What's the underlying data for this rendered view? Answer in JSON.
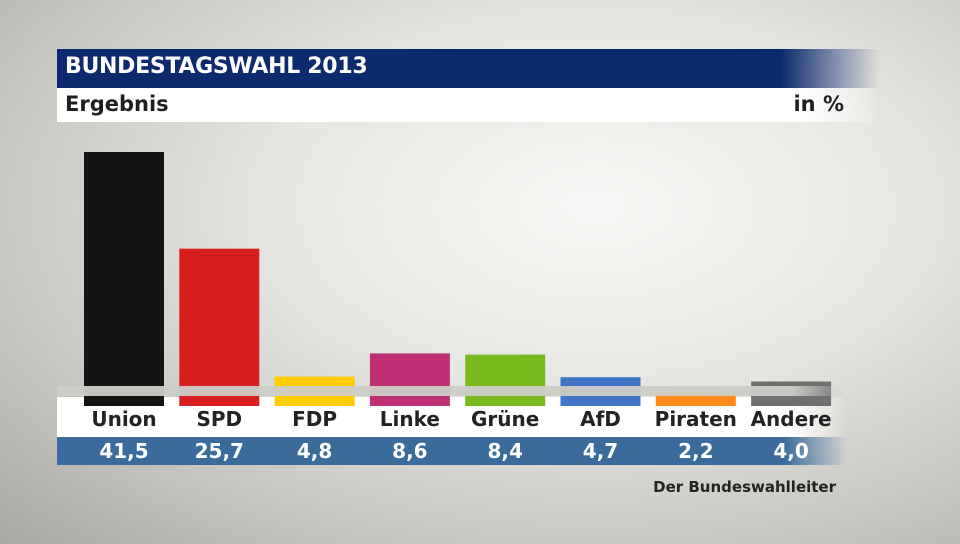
{
  "header": {
    "title": "BUNDESTAGSWAHL 2013",
    "subtitle": "Ergebnis",
    "unit": "in %"
  },
  "source": "Der Bundeswahlleiter",
  "chart_data": {
    "type": "bar",
    "title": "BUNDESTAGSWAHL 2013",
    "subtitle": "Ergebnis",
    "ylabel": "in %",
    "categories": [
      "Union",
      "SPD",
      "FDP",
      "Linke",
      "Grüne",
      "AfD",
      "Piraten",
      "Andere"
    ],
    "values": [
      41.5,
      25.7,
      4.8,
      8.6,
      8.4,
      4.7,
      2.2,
      4.0
    ],
    "value_labels": [
      "41,5",
      "25,7",
      "4,8",
      "8,6",
      "8,4",
      "4,7",
      "2,2",
      "4,0"
    ],
    "colors": [
      "#141414",
      "#d81e1e",
      "#ffcc00",
      "#be2f74",
      "#78bb1e",
      "#3f75c4",
      "#ff8a1a",
      "#707070"
    ],
    "ylim": [
      0,
      41.5
    ],
    "grid": false,
    "legend": "none"
  }
}
